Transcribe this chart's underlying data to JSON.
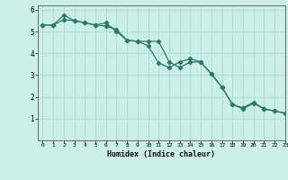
{
  "xlabel": "Humidex (Indice chaleur)",
  "ylabel": "",
  "bg_color": "#cceee8",
  "grid_color": "#aaddcc",
  "line_color": "#2d7a6a",
  "xlim": [
    -0.5,
    23
  ],
  "ylim": [
    0,
    6.2
  ],
  "xticks": [
    0,
    1,
    2,
    3,
    4,
    5,
    6,
    7,
    8,
    9,
    10,
    11,
    12,
    13,
    14,
    15,
    16,
    17,
    18,
    19,
    20,
    21,
    22,
    23
  ],
  "yticks": [
    1,
    2,
    3,
    4,
    5,
    6
  ],
  "line1_x": [
    0,
    1,
    2,
    3,
    4,
    5,
    6,
    7,
    8,
    9,
    10,
    11,
    12,
    13,
    14,
    15,
    16,
    17,
    18,
    19,
    20,
    21,
    22,
    23
  ],
  "line1_y": [
    5.3,
    5.3,
    5.55,
    5.5,
    5.4,
    5.3,
    5.25,
    5.1,
    4.6,
    4.55,
    4.55,
    4.55,
    3.6,
    3.35,
    3.6,
    3.6,
    3.05,
    2.45,
    1.65,
    1.5,
    1.75,
    1.45,
    1.35,
    1.25
  ],
  "line2_x": [
    0,
    1,
    2,
    3,
    4,
    5,
    6,
    7,
    8,
    9,
    10,
    11,
    12,
    13,
    14,
    15,
    16,
    17,
    18,
    19,
    20,
    21,
    22,
    23
  ],
  "line2_y": [
    5.3,
    5.3,
    5.75,
    5.5,
    5.4,
    5.3,
    5.4,
    5.0,
    4.6,
    4.55,
    4.35,
    3.55,
    3.35,
    3.6,
    3.75,
    3.6,
    3.05,
    2.45,
    1.65,
    1.45,
    1.7,
    1.45,
    1.35,
    1.25
  ]
}
